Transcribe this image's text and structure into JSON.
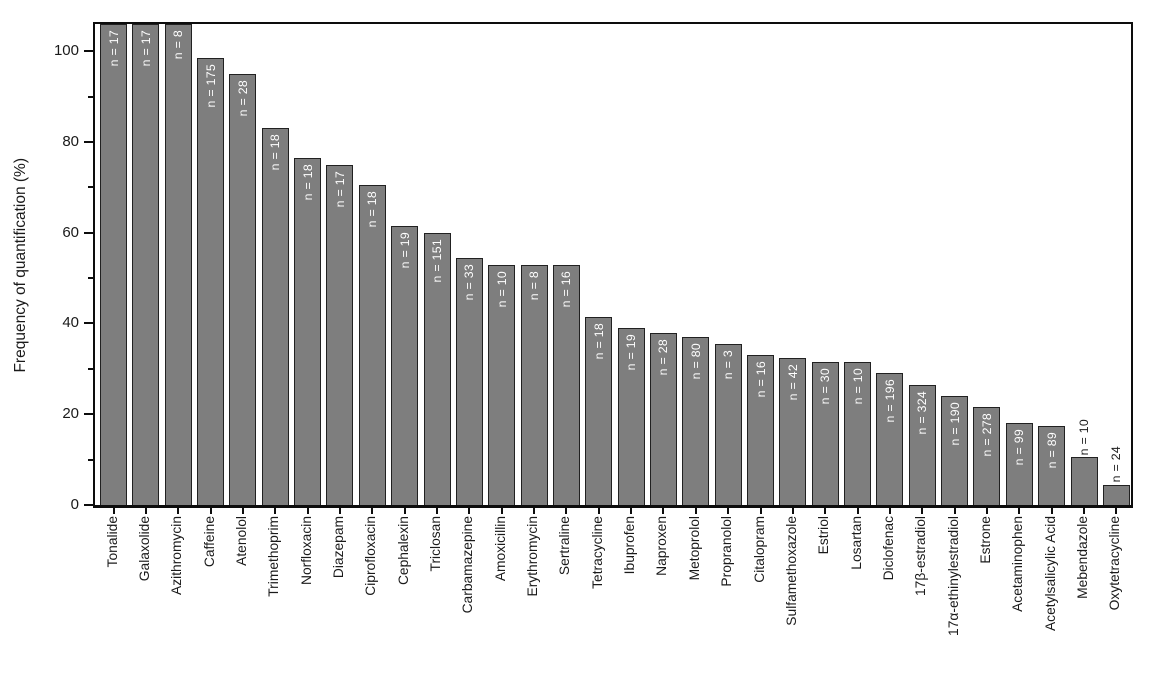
{
  "chart_data": {
    "type": "bar",
    "title": "",
    "xlabel": "",
    "ylabel": "Frequency of quantification (%)",
    "ylim": [
      0,
      106
    ],
    "yticks_major": [
      0,
      20,
      40,
      60,
      80,
      100
    ],
    "yticks_minor": [
      10,
      30,
      50,
      70,
      90
    ],
    "grid": "off",
    "legend": "none",
    "bar_color": "#7e7e7e",
    "bar_edge_color": "#212121",
    "n_label_color_inside": "#ffffff",
    "n_label_color_outside": "#1a1a1a",
    "note": "First three bars are drawn past the 100% tick and clipped at the top plot border; n labels for the two shortest bars sit above the bars.",
    "bars": [
      {
        "category": "Tonalide",
        "n": 17,
        "n_label": "n = 17",
        "value_pct": 100,
        "clipped_at_top": true,
        "n_label_outside": false
      },
      {
        "category": "Galaxolide",
        "n": 17,
        "n_label": "n = 17",
        "value_pct": 100,
        "clipped_at_top": true,
        "n_label_outside": false
      },
      {
        "category": "Azithromycin",
        "n": 8,
        "n_label": "n = 8",
        "value_pct": 100,
        "clipped_at_top": true,
        "n_label_outside": false
      },
      {
        "category": "Caffeine",
        "n": 175,
        "n_label": "n = 175",
        "value_pct": 98.5,
        "clipped_at_top": false,
        "n_label_outside": false
      },
      {
        "category": "Atenolol",
        "n": 28,
        "n_label": "n = 28",
        "value_pct": 95,
        "clipped_at_top": false,
        "n_label_outside": false
      },
      {
        "category": "Trimethoprim",
        "n": 18,
        "n_label": "n = 18",
        "value_pct": 83,
        "clipped_at_top": false,
        "n_label_outside": false
      },
      {
        "category": "Norfloxacin",
        "n": 18,
        "n_label": "n = 18",
        "value_pct": 76.5,
        "clipped_at_top": false,
        "n_label_outside": false
      },
      {
        "category": "Diazepam",
        "n": 17,
        "n_label": "n = 17",
        "value_pct": 75,
        "clipped_at_top": false,
        "n_label_outside": false
      },
      {
        "category": "Ciprofloxacin",
        "n": 18,
        "n_label": "n = 18",
        "value_pct": 70.5,
        "clipped_at_top": false,
        "n_label_outside": false
      },
      {
        "category": "Cephalexin",
        "n": 19,
        "n_label": "n = 19",
        "value_pct": 61.5,
        "clipped_at_top": false,
        "n_label_outside": false
      },
      {
        "category": "Triclosan",
        "n": 151,
        "n_label": "n = 151",
        "value_pct": 60,
        "clipped_at_top": false,
        "n_label_outside": false
      },
      {
        "category": "Carbamazepine",
        "n": 33,
        "n_label": "n = 33",
        "value_pct": 54.5,
        "clipped_at_top": false,
        "n_label_outside": false
      },
      {
        "category": "Amoxicillin",
        "n": 10,
        "n_label": "n = 10",
        "value_pct": 53,
        "clipped_at_top": false,
        "n_label_outside": false
      },
      {
        "category": "Erythromycin",
        "n": 8,
        "n_label": "n = 8",
        "value_pct": 53,
        "clipped_at_top": false,
        "n_label_outside": false
      },
      {
        "category": "Sertraline",
        "n": 16,
        "n_label": "n = 16",
        "value_pct": 53,
        "clipped_at_top": false,
        "n_label_outside": false
      },
      {
        "category": "Tetracycline",
        "n": 18,
        "n_label": "n = 18",
        "value_pct": 41.5,
        "clipped_at_top": false,
        "n_label_outside": false
      },
      {
        "category": "Ibuprofen",
        "n": 19,
        "n_label": "n = 19",
        "value_pct": 39,
        "clipped_at_top": false,
        "n_label_outside": false
      },
      {
        "category": "Naproxen",
        "n": 28,
        "n_label": "n = 28",
        "value_pct": 38,
        "clipped_at_top": false,
        "n_label_outside": false
      },
      {
        "category": "Metoprolol",
        "n": 80,
        "n_label": "n = 80",
        "value_pct": 37,
        "clipped_at_top": false,
        "n_label_outside": false
      },
      {
        "category": "Propranolol",
        "n": 3,
        "n_label": "n = 3",
        "value_pct": 35.5,
        "clipped_at_top": false,
        "n_label_outside": false
      },
      {
        "category": "Citalopram",
        "n": 16,
        "n_label": "n = 16",
        "value_pct": 33,
        "clipped_at_top": false,
        "n_label_outside": false
      },
      {
        "category": "Sulfamethoxazole",
        "n": 42,
        "n_label": "n = 42",
        "value_pct": 32.5,
        "clipped_at_top": false,
        "n_label_outside": false
      },
      {
        "category": "Estriol",
        "n": 30,
        "n_label": "n = 30",
        "value_pct": 31.5,
        "clipped_at_top": false,
        "n_label_outside": false
      },
      {
        "category": "Losartan",
        "n": 10,
        "n_label": "n = 10",
        "value_pct": 31.5,
        "clipped_at_top": false,
        "n_label_outside": false
      },
      {
        "category": "Diclofenac",
        "n": 196,
        "n_label": "n = 196",
        "value_pct": 29,
        "clipped_at_top": false,
        "n_label_outside": false
      },
      {
        "category": "17β-estradiol",
        "n": 324,
        "n_label": "n = 324",
        "value_pct": 26.5,
        "clipped_at_top": false,
        "n_label_outside": false
      },
      {
        "category": "17α-ethinylestradiol",
        "n": 190,
        "n_label": "n = 190",
        "value_pct": 24,
        "clipped_at_top": false,
        "n_label_outside": false
      },
      {
        "category": "Estrone",
        "n": 278,
        "n_label": "n = 278",
        "value_pct": 21.5,
        "clipped_at_top": false,
        "n_label_outside": false
      },
      {
        "category": "Acetaminophen",
        "n": 99,
        "n_label": "n = 99",
        "value_pct": 18,
        "clipped_at_top": false,
        "n_label_outside": false
      },
      {
        "category": "Acetylsalicylic Acid",
        "n": 89,
        "n_label": "n = 89",
        "value_pct": 17.5,
        "clipped_at_top": false,
        "n_label_outside": false
      },
      {
        "category": "Mebendazole",
        "n": 10,
        "n_label": "n = 10",
        "value_pct": 10.5,
        "clipped_at_top": false,
        "n_label_outside": true
      },
      {
        "category": "Oxytetracycline",
        "n": 24,
        "n_label": "n = 24",
        "value_pct": 4.5,
        "clipped_at_top": false,
        "n_label_outside": true
      }
    ]
  }
}
